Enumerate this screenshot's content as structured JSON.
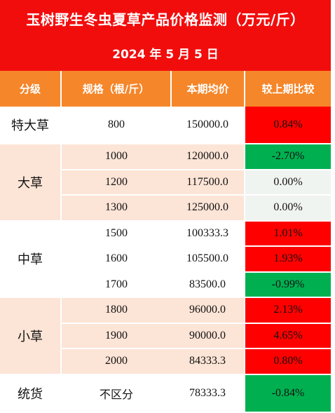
{
  "title": "玉树野生冬虫夏草产品价格监测（万元/斤）",
  "date": "2024 年 5 月 5 日",
  "colors": {
    "title_bg": "#f20d0d",
    "header_bg": "#f5862a",
    "group_alt_bg": "#fce4d6",
    "increase": "#ff0000",
    "decrease": "#00b050",
    "unchanged": "#f0f4f1"
  },
  "columns": [
    "分级",
    "规格（根/斤）",
    "本期均价",
    "较上期比较"
  ],
  "groups": [
    {
      "grade": "特大草",
      "rows": [
        {
          "spec": "800",
          "price": "150000.0",
          "change": "0.84%",
          "trend": "up"
        }
      ]
    },
    {
      "grade": "大草",
      "rows": [
        {
          "spec": "1000",
          "price": "120000.0",
          "change": "-2.70%",
          "trend": "down"
        },
        {
          "spec": "1200",
          "price": "117500.0",
          "change": "0.00%",
          "trend": "neutral"
        },
        {
          "spec": "1300",
          "price": "125000.0",
          "change": "0.00%",
          "trend": "neutral"
        }
      ]
    },
    {
      "grade": "中草",
      "rows": [
        {
          "spec": "1500",
          "price": "100333.3",
          "change": "1.01%",
          "trend": "up"
        },
        {
          "spec": "1600",
          "price": "105500.0",
          "change": "1.93%",
          "trend": "up"
        },
        {
          "spec": "1700",
          "price": "83500.0",
          "change": "-0.99%",
          "trend": "down"
        }
      ]
    },
    {
      "grade": "小草",
      "rows": [
        {
          "spec": "1800",
          "price": "96000.0",
          "change": "2.13%",
          "trend": "up"
        },
        {
          "spec": "1900",
          "price": "90000.0",
          "change": "4.65%",
          "trend": "up"
        },
        {
          "spec": "2000",
          "price": "84333.3",
          "change": "0.80%",
          "trend": "up"
        }
      ]
    },
    {
      "grade": "统货",
      "rows": [
        {
          "spec": "不区分",
          "price": "78333.3",
          "change": "-0.84%",
          "trend": "down"
        }
      ]
    }
  ]
}
